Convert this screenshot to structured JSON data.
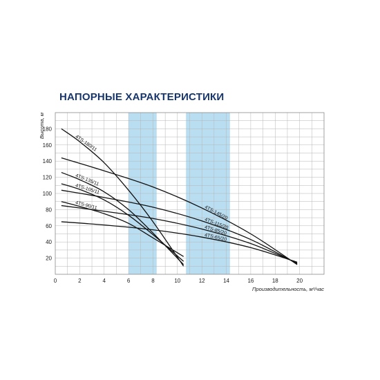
{
  "chart_data": {
    "type": "line",
    "title": "НАПОРНЫЕ ХАРАКТЕРИСТИКИ",
    "xlabel": "Производительность, м³/час",
    "ylabel": "Высота, м",
    "xlim": [
      0,
      22
    ],
    "ylim": [
      0,
      200
    ],
    "xticks": [
      0,
      2,
      4,
      6,
      8,
      10,
      12,
      14,
      16,
      18,
      20
    ],
    "yticks": [
      20,
      40,
      60,
      80,
      100,
      120,
      140,
      160,
      180
    ],
    "grid": true,
    "highlight_bands": [
      [
        6,
        8.3
      ],
      [
        10.7,
        14.3
      ]
    ],
    "colors": {
      "band": "#b9def2",
      "curve": "#111111",
      "title": "#17356b",
      "grid": "#b5b5b5"
    },
    "series": [
      {
        "name": "4TS-180/11",
        "x": [
          0.5,
          2,
          4,
          6,
          8,
          10.5
        ],
        "y": [
          180,
          164,
          138,
          104,
          65,
          10
        ]
      },
      {
        "name": "4TS-135/11",
        "x": [
          0.5,
          2,
          4,
          6,
          8,
          10.5
        ],
        "y": [
          126,
          117,
          102,
          80,
          51,
          12
        ]
      },
      {
        "name": "4TS-105/11",
        "x": [
          0.5,
          2,
          4,
          6,
          8,
          10.5
        ],
        "y": [
          112,
          105,
          92,
          73,
          49,
          16
        ]
      },
      {
        "name": "4TS-90/11",
        "x": [
          0.5,
          2,
          4,
          6,
          8,
          10.5
        ],
        "y": [
          90,
          84,
          75,
          63,
          45,
          22
        ]
      },
      {
        "name": "4TS-145/20",
        "x": [
          0.5,
          4,
          8,
          12,
          16,
          19.8
        ],
        "y": [
          144,
          128,
          108,
          82,
          50,
          12
        ]
      },
      {
        "name": "4TS-115/20",
        "x": [
          0.5,
          4,
          8,
          12,
          16,
          19.8
        ],
        "y": [
          104,
          95,
          83,
          66,
          43,
          13
        ]
      },
      {
        "name": "4TS-85/20",
        "x": [
          0.5,
          4,
          8,
          12,
          16,
          19.8
        ],
        "y": [
          85,
          78,
          69,
          56,
          38,
          14
        ]
      },
      {
        "name": "4TS-65/20",
        "x": [
          0.5,
          4,
          8,
          12,
          16,
          19.8
        ],
        "y": [
          65,
          61,
          55,
          46,
          33,
          15
        ]
      }
    ]
  }
}
